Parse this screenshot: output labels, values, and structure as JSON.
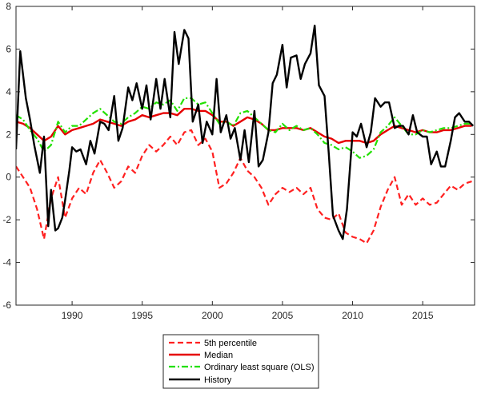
{
  "chart_data": {
    "type": "line",
    "title": "",
    "xlabel": "",
    "ylabel": "",
    "xlim": [
      1986,
      2018.7
    ],
    "ylim": [
      -6,
      8
    ],
    "grid": false,
    "legend_position": "bottom-center",
    "x_ticks": [
      {
        "value": 1990,
        "label": "1990"
      },
      {
        "value": 1995,
        "label": "1995"
      },
      {
        "value": 2000,
        "label": "2000"
      },
      {
        "value": 2005,
        "label": "2005"
      },
      {
        "value": 2010,
        "label": "2010"
      },
      {
        "value": 2015,
        "label": "2015"
      }
    ],
    "y_ticks": [
      {
        "value": 8,
        "label": "8"
      },
      {
        "value": 6,
        "label": "6"
      },
      {
        "value": 4,
        "label": "4"
      },
      {
        "value": 2,
        "label": "2"
      },
      {
        "value": 0,
        "label": "0"
      },
      {
        "value": -2,
        "label": "-2"
      },
      {
        "value": -4,
        "label": "-4"
      },
      {
        "value": -6,
        "label": "-6"
      }
    ],
    "series": [
      {
        "name": "5th percentile",
        "color": "#ff2020",
        "style": "dashed",
        "x": [
          1986.0,
          1986.5,
          1987.0,
          1987.5,
          1988.0,
          1988.5,
          1989.0,
          1989.5,
          1990.0,
          1990.5,
          1991.0,
          1991.5,
          1992.0,
          1992.5,
          1993.0,
          1993.5,
          1994.0,
          1994.5,
          1995.0,
          1995.5,
          1996.0,
          1996.5,
          1997.0,
          1997.5,
          1998.0,
          1998.5,
          1999.0,
          1999.5,
          2000.0,
          2000.5,
          2001.0,
          2001.5,
          2002.0,
          2002.5,
          2003.0,
          2003.5,
          2004.0,
          2004.5,
          2005.0,
          2005.5,
          2006.0,
          2006.5,
          2007.0,
          2007.5,
          2008.0,
          2008.5,
          2009.0,
          2009.5,
          2010.0,
          2010.5,
          2011.0,
          2011.5,
          2012.0,
          2012.5,
          2013.0,
          2013.5,
          2014.0,
          2014.5,
          2015.0,
          2015.5,
          2016.0,
          2016.5,
          2017.0,
          2017.5,
          2018.0,
          2018.5
        ],
        "values": [
          0.5,
          0.0,
          -0.5,
          -1.5,
          -2.9,
          -1.0,
          0.0,
          -1.9,
          -1.0,
          -0.5,
          -0.8,
          0.2,
          0.8,
          0.2,
          -0.5,
          -0.2,
          0.5,
          0.2,
          1.0,
          1.5,
          1.2,
          1.5,
          1.9,
          1.5,
          2.1,
          2.2,
          1.5,
          1.8,
          1.2,
          -0.5,
          -0.3,
          0.2,
          0.9,
          0.3,
          0.0,
          -0.5,
          -1.3,
          -0.8,
          -0.5,
          -0.7,
          -0.5,
          -0.8,
          -0.5,
          -1.5,
          -1.9,
          -2.0,
          -1.7,
          -2.6,
          -2.8,
          -2.9,
          -3.1,
          -2.5,
          -1.4,
          -0.6,
          0.0,
          -1.3,
          -0.8,
          -1.3,
          -1.0,
          -1.3,
          -1.2,
          -0.8,
          -0.4,
          -0.6,
          -0.3,
          -0.2
        ]
      },
      {
        "name": "Median",
        "color": "#e60000",
        "style": "solid",
        "x": [
          1986.0,
          1986.5,
          1987.0,
          1987.5,
          1988.0,
          1988.5,
          1989.0,
          1989.5,
          1990.0,
          1990.5,
          1991.0,
          1991.5,
          1992.0,
          1992.5,
          1993.0,
          1993.5,
          1994.0,
          1994.5,
          1995.0,
          1995.5,
          1996.0,
          1996.5,
          1997.0,
          1997.5,
          1998.0,
          1998.5,
          1999.0,
          1999.5,
          2000.0,
          2000.5,
          2001.0,
          2001.5,
          2002.0,
          2002.5,
          2003.0,
          2003.5,
          2004.0,
          2004.5,
          2005.0,
          2005.5,
          2006.0,
          2006.5,
          2007.0,
          2007.5,
          2008.0,
          2008.5,
          2009.0,
          2009.5,
          2010.0,
          2010.5,
          2011.0,
          2011.5,
          2012.0,
          2012.5,
          2013.0,
          2013.5,
          2014.0,
          2014.5,
          2015.0,
          2015.5,
          2016.0,
          2016.5,
          2017.0,
          2017.5,
          2018.0,
          2018.5
        ],
        "values": [
          2.6,
          2.5,
          2.3,
          2.0,
          1.7,
          1.9,
          2.4,
          2.0,
          2.2,
          2.3,
          2.4,
          2.5,
          2.7,
          2.6,
          2.5,
          2.4,
          2.6,
          2.7,
          2.9,
          2.8,
          2.9,
          3.0,
          3.0,
          2.9,
          3.2,
          3.2,
          3.1,
          3.1,
          2.9,
          2.6,
          2.6,
          2.4,
          2.6,
          2.8,
          2.7,
          2.5,
          2.2,
          2.2,
          2.3,
          2.3,
          2.3,
          2.2,
          2.3,
          2.1,
          1.9,
          1.8,
          1.6,
          1.7,
          1.7,
          1.7,
          1.6,
          1.7,
          2.0,
          2.2,
          2.4,
          2.3,
          2.2,
          2.1,
          2.2,
          2.1,
          2.1,
          2.2,
          2.2,
          2.3,
          2.4,
          2.4
        ]
      },
      {
        "name": "Ordinary least square (OLS)",
        "color": "#22e000",
        "style": "dashdot",
        "x": [
          1986.0,
          1986.5,
          1987.0,
          1987.5,
          1988.0,
          1988.5,
          1989.0,
          1989.5,
          1990.0,
          1990.5,
          1991.0,
          1991.5,
          1992.0,
          1992.5,
          1993.0,
          1993.5,
          1994.0,
          1994.5,
          1995.0,
          1995.5,
          1996.0,
          1996.5,
          1997.0,
          1997.5,
          1998.0,
          1998.5,
          1999.0,
          1999.5,
          2000.0,
          2000.5,
          2001.0,
          2001.5,
          2002.0,
          2002.5,
          2003.0,
          2003.5,
          2004.0,
          2004.5,
          2005.0,
          2005.5,
          2006.0,
          2006.5,
          2007.0,
          2007.5,
          2008.0,
          2008.5,
          2009.0,
          2009.5,
          2010.0,
          2010.5,
          2011.0,
          2011.5,
          2012.0,
          2012.5,
          2013.0,
          2013.5,
          2014.0,
          2014.5,
          2015.0,
          2015.5,
          2016.0,
          2016.5,
          2017.0,
          2017.5,
          2018.0,
          2018.5
        ],
        "values": [
          2.9,
          2.7,
          2.2,
          1.8,
          1.2,
          1.5,
          2.6,
          2.1,
          2.4,
          2.4,
          2.7,
          3.0,
          3.2,
          2.9,
          2.6,
          2.5,
          2.8,
          3.0,
          3.3,
          3.2,
          3.5,
          3.4,
          3.6,
          3.1,
          3.7,
          3.7,
          3.4,
          3.5,
          3.0,
          2.5,
          2.6,
          2.4,
          3.0,
          3.1,
          2.8,
          2.5,
          2.2,
          2.1,
          2.5,
          2.2,
          2.4,
          2.2,
          2.3,
          2.0,
          1.6,
          1.5,
          1.3,
          1.4,
          1.2,
          0.9,
          1.0,
          1.3,
          2.1,
          2.4,
          2.8,
          2.4,
          2.0,
          2.0,
          2.2,
          2.1,
          2.2,
          2.3,
          2.3,
          2.4,
          2.5,
          2.5
        ]
      },
      {
        "name": "History",
        "color": "#000000",
        "style": "solid",
        "x": [
          1986.0,
          1986.3,
          1986.7,
          1987.0,
          1987.3,
          1987.7,
          1988.0,
          1988.3,
          1988.5,
          1988.8,
          1989.0,
          1989.3,
          1989.5,
          1989.8,
          1990.0,
          1990.3,
          1990.6,
          1991.0,
          1991.3,
          1991.6,
          1992.0,
          1992.3,
          1992.6,
          1993.0,
          1993.3,
          1993.6,
          1994.0,
          1994.3,
          1994.6,
          1995.0,
          1995.3,
          1995.6,
          1996.0,
          1996.3,
          1996.6,
          1997.0,
          1997.3,
          1997.6,
          1998.0,
          1998.3,
          1998.6,
          1999.0,
          1999.3,
          1999.6,
          2000.0,
          2000.3,
          2000.6,
          2001.0,
          2001.3,
          2001.6,
          2002.0,
          2002.3,
          2002.6,
          2003.0,
          2003.3,
          2003.6,
          2004.0,
          2004.3,
          2004.6,
          2005.0,
          2005.3,
          2005.6,
          2006.0,
          2006.3,
          2006.6,
          2007.0,
          2007.3,
          2007.6,
          2008.0,
          2008.3,
          2008.6,
          2009.0,
          2009.3,
          2009.6,
          2010.0,
          2010.3,
          2010.6,
          2011.0,
          2011.3,
          2011.6,
          2012.0,
          2012.3,
          2012.6,
          2013.0,
          2013.3,
          2013.6,
          2014.0,
          2014.3,
          2014.6,
          2015.0,
          2015.3,
          2015.6,
          2016.0,
          2016.3,
          2016.6,
          2017.0,
          2017.3,
          2017.6,
          2018.0,
          2018.3,
          2018.6
        ],
        "values": [
          1.3,
          5.9,
          3.7,
          2.7,
          1.5,
          0.2,
          1.9,
          -2.3,
          -0.6,
          -2.5,
          -2.4,
          -1.9,
          -1.1,
          0.3,
          1.4,
          1.2,
          1.3,
          0.6,
          1.7,
          1.1,
          2.6,
          2.5,
          2.2,
          3.8,
          1.7,
          2.3,
          4.2,
          3.6,
          4.4,
          3.2,
          4.3,
          2.7,
          4.6,
          3.2,
          4.6,
          2.8,
          6.8,
          5.3,
          6.9,
          6.5,
          2.6,
          3.4,
          1.6,
          2.6,
          2.0,
          4.6,
          2.1,
          2.9,
          1.8,
          2.3,
          0.8,
          2.2,
          0.7,
          3.1,
          0.5,
          0.8,
          2.1,
          4.4,
          4.8,
          6.2,
          4.2,
          5.6,
          5.7,
          4.6,
          5.3,
          5.8,
          7.1,
          4.3,
          3.8,
          1.1,
          -1.8,
          -2.5,
          -2.9,
          -1.5,
          2.1,
          1.9,
          2.5,
          1.4,
          2.1,
          3.7,
          3.3,
          3.5,
          3.5,
          2.3,
          2.4,
          2.4,
          2.0,
          2.9,
          2.1,
          1.9,
          1.9,
          0.6,
          1.2,
          0.5,
          0.5,
          1.7,
          2.8,
          3.0,
          2.6,
          2.6,
          2.4
        ]
      }
    ]
  }
}
